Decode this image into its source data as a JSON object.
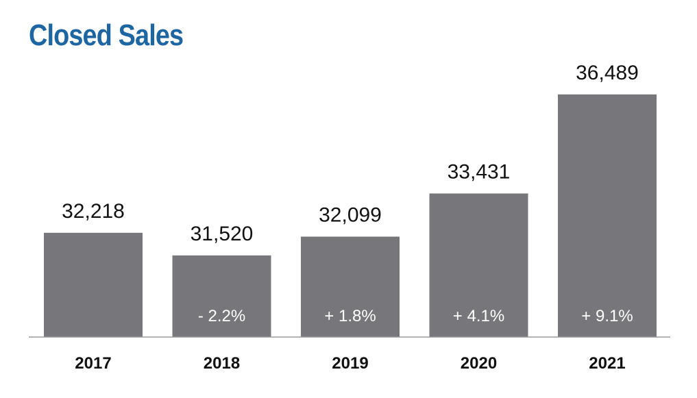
{
  "title": "Closed Sales",
  "colors": {
    "title": "#1d66a1",
    "bar": "#77777b",
    "axis": "#999999",
    "change_text": "#ffffff",
    "label_text": "#111111"
  },
  "chart_data": {
    "type": "bar",
    "title": "Closed Sales",
    "categories": [
      "2017",
      "2018",
      "2019",
      "2020",
      "2021"
    ],
    "values": [
      32218,
      31520,
      32099,
      33431,
      36489
    ],
    "value_labels": [
      "32,218",
      "31,520",
      "32,099",
      "33,431",
      "36,489"
    ],
    "change_labels": [
      "",
      "- 2.2%",
      "+ 1.8%",
      "+ 4.1%",
      "+ 9.1%"
    ],
    "xlabel": "",
    "ylabel": "",
    "ylim": [
      29000,
      37500
    ],
    "grid": false,
    "legend": "none"
  }
}
